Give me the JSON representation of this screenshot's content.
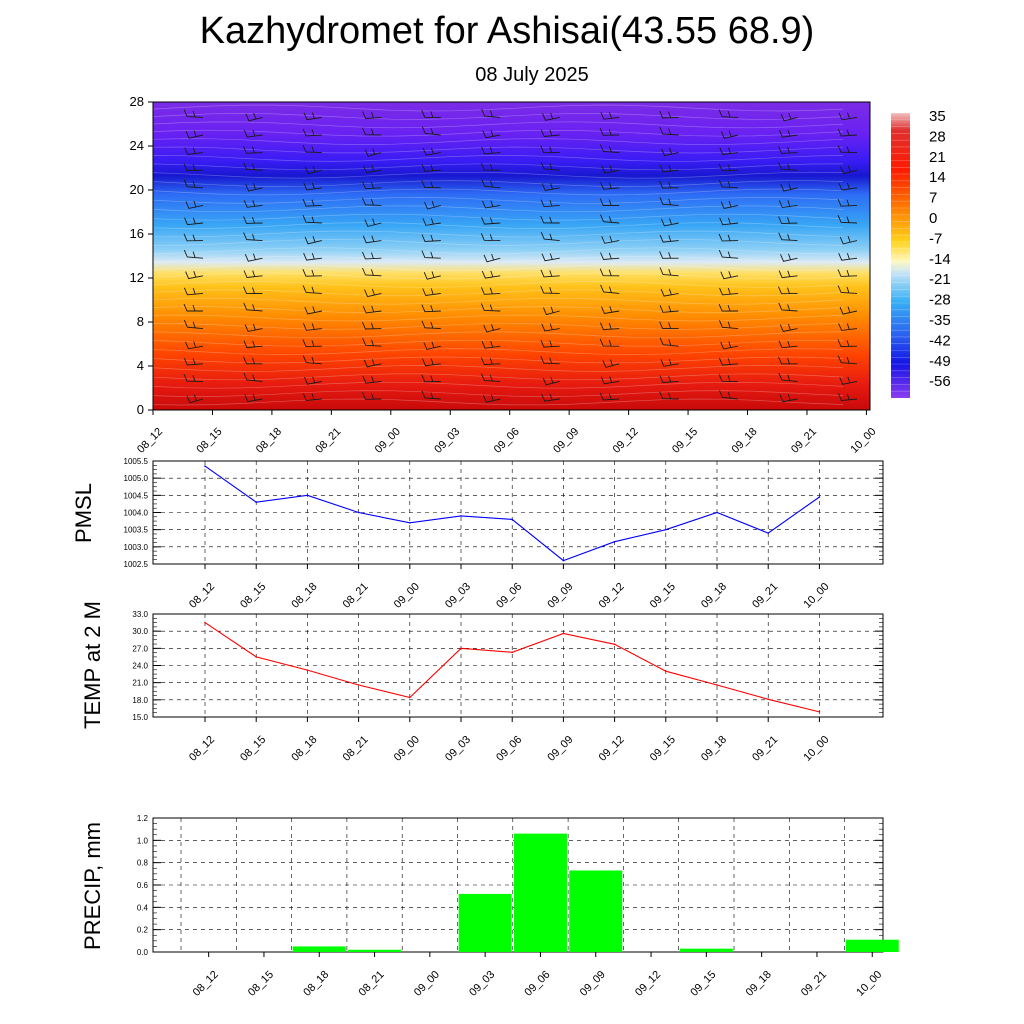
{
  "header": {
    "title": "Kazhydromet for Ashisai(43.55 68.9)",
    "date": "08 July 2025"
  },
  "time_labels": [
    "08_12",
    "08_15",
    "08_18",
    "08_21",
    "09_00",
    "09_03",
    "09_06",
    "09_09",
    "09_12",
    "09_15",
    "09_18",
    "09_21",
    "10_00"
  ],
  "colors": {
    "pmsl_line": "#0000ff",
    "temp_line": "#ff0000",
    "precip_bar": "#00ff00",
    "grid": "#000000"
  },
  "chart_data": [
    {
      "type": "heatmap",
      "title": "",
      "xlabel": "",
      "ylabel": "",
      "x_categories": [
        "08_12",
        "08_15",
        "08_18",
        "08_21",
        "09_00",
        "09_03",
        "09_06",
        "09_09",
        "09_12",
        "09_15",
        "09_18",
        "09_21",
        "10_00"
      ],
      "y_ticks": [
        0,
        4,
        8,
        12,
        16,
        20,
        24,
        28
      ],
      "ylim": [
        0,
        28
      ],
      "overlay": "wind barbs",
      "colorbar": {
        "labels": [
          "35",
          "28",
          "21",
          "14",
          "7",
          "0",
          "-7",
          "-14",
          "-21",
          "-28",
          "-35",
          "-42",
          "-49",
          "-56"
        ],
        "range": [
          -63,
          42
        ]
      }
    },
    {
      "type": "line",
      "ylabel": "PMSL",
      "x": [
        "08_12",
        "08_15",
        "08_18",
        "08_21",
        "09_00",
        "09_03",
        "09_06",
        "09_09",
        "09_12",
        "09_15",
        "09_18",
        "09_21",
        "10_00"
      ],
      "values": [
        1005.35,
        1004.3,
        1004.5,
        1004.0,
        1003.7,
        1003.9,
        1003.8,
        1002.6,
        1003.15,
        1003.5,
        1004.0,
        1003.4,
        1004.45
      ],
      "ylim": [
        1002.5,
        1005.5
      ],
      "yticks": [
        "1005.5",
        "1005.0",
        "1004.5",
        "1004.0",
        "1003.5",
        "1003.0",
        "1002.5"
      ],
      "grid": true
    },
    {
      "type": "line",
      "ylabel": "TEMP at 2 M",
      "x": [
        "08_12",
        "08_15",
        "08_18",
        "08_21",
        "09_00",
        "09_03",
        "09_06",
        "09_09",
        "09_12",
        "09_15",
        "09_18",
        "09_21",
        "10_00"
      ],
      "values": [
        31.5,
        25.5,
        23.2,
        20.6,
        18.4,
        27.0,
        26.3,
        29.6,
        27.7,
        23.0,
        20.6,
        18.1,
        15.9
      ],
      "ylim": [
        15.0,
        33.0
      ],
      "yticks": [
        "33.0",
        "30.0",
        "27.0",
        "24.0",
        "21.0",
        "18.0",
        "15.0"
      ],
      "grid": true
    },
    {
      "type": "bar",
      "ylabel": "PRECIP, mm",
      "categories": [
        "08_12",
        "08_15",
        "08_18",
        "08_21",
        "09_00",
        "09_03",
        "09_06",
        "09_09",
        "09_12",
        "09_15",
        "09_18",
        "09_21",
        "10_00"
      ],
      "values": [
        0,
        0,
        0.05,
        0.02,
        0,
        0.52,
        1.06,
        0.73,
        0,
        0.03,
        0,
        0,
        0.11
      ],
      "ylim": [
        0,
        1.2
      ],
      "yticks": [
        "1.2",
        "1.0",
        "0.8",
        "0.6",
        "0.4",
        "0.2",
        "0.0"
      ],
      "grid": true
    }
  ]
}
